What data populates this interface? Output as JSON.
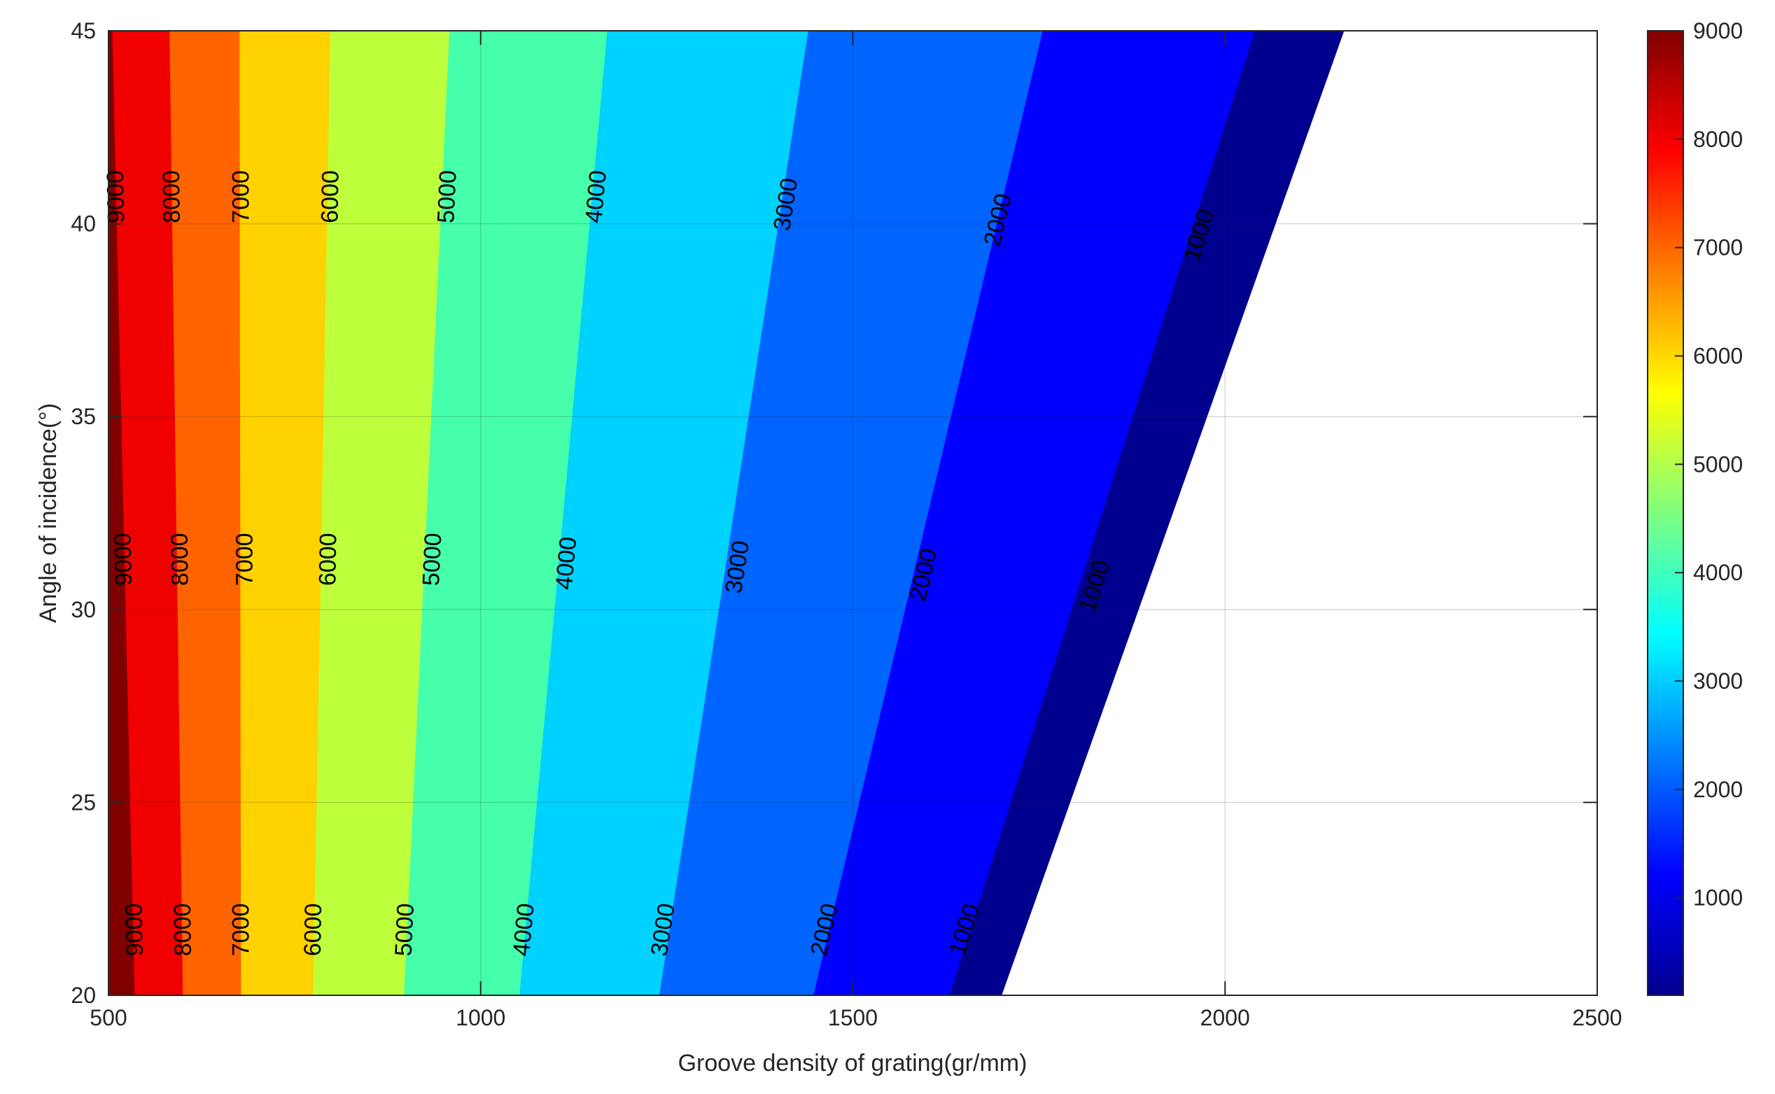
{
  "chart_data": {
    "type": "contour",
    "xlabel": "Groove density of grating(gr/mm)",
    "ylabel": "Angle of incidence(°)",
    "xlim": [
      500,
      2500
    ],
    "ylim": [
      20,
      45
    ],
    "x_ticks": [
      500,
      1000,
      1500,
      2000,
      2500
    ],
    "y_ticks": [
      20,
      25,
      30,
      35,
      40,
      45
    ],
    "grid": true,
    "colormap": "jet",
    "colorbar": {
      "range": [
        100,
        9000
      ],
      "ticks": [
        1000,
        2000,
        3000,
        4000,
        5000,
        6000,
        7000,
        8000,
        9000
      ],
      "placement": "right"
    },
    "contour_levels": [
      1000,
      2000,
      3000,
      4000,
      5000,
      6000,
      7000,
      8000,
      9000
    ],
    "contour_boundaries": [
      {
        "level": 9000,
        "x_at_y20": 535,
        "x_at_y45": 505
      },
      {
        "level": 8000,
        "x_at_y20": 600,
        "x_at_y45": 582
      },
      {
        "level": 7000,
        "x_at_y20": 678,
        "x_at_y45": 676
      },
      {
        "level": 6000,
        "x_at_y20": 775,
        "x_at_y45": 798
      },
      {
        "level": 5000,
        "x_at_y20": 897,
        "x_at_y45": 958
      },
      {
        "level": 4000,
        "x_at_y20": 1052,
        "x_at_y45": 1170
      },
      {
        "level": 3000,
        "x_at_y20": 1240,
        "x_at_y45": 1440
      },
      {
        "level": 2000,
        "x_at_y20": 1447,
        "x_at_y45": 1755
      },
      {
        "level": 1000,
        "x_at_y20": 1630,
        "x_at_y45": 2040
      },
      {
        "level": 100,
        "x_at_y20": 1700,
        "x_at_y45": 2160
      }
    ],
    "band_colors": [
      "#00008F",
      "#0000FF",
      "#0064FF",
      "#00D2FF",
      "#46FFAA",
      "#BEFF3C",
      "#FFD200",
      "#FF6400",
      "#F00000",
      "#800000"
    ],
    "contour_labels": [
      {
        "text": "9000",
        "x": 510,
        "y": 40.7
      },
      {
        "text": "8000",
        "x": 585,
        "y": 40.7
      },
      {
        "text": "7000",
        "x": 678,
        "y": 40.7
      },
      {
        "text": "6000",
        "x": 798,
        "y": 40.7
      },
      {
        "text": "5000",
        "x": 955,
        "y": 40.7
      },
      {
        "text": "4000",
        "x": 1155,
        "y": 40.7
      },
      {
        "text": "3000",
        "x": 1410,
        "y": 40.5
      },
      {
        "text": "2000",
        "x": 1695,
        "y": 40.1
      },
      {
        "text": "1000",
        "x": 1965,
        "y": 39.7
      },
      {
        "text": "9000",
        "x": 520,
        "y": 31.3
      },
      {
        "text": "8000",
        "x": 596,
        "y": 31.3
      },
      {
        "text": "7000",
        "x": 683,
        "y": 31.3
      },
      {
        "text": "6000",
        "x": 795,
        "y": 31.3
      },
      {
        "text": "5000",
        "x": 935,
        "y": 31.3
      },
      {
        "text": "4000",
        "x": 1115,
        "y": 31.2
      },
      {
        "text": "3000",
        "x": 1345,
        "y": 31.1
      },
      {
        "text": "2000",
        "x": 1595,
        "y": 30.9
      },
      {
        "text": "1000",
        "x": 1825,
        "y": 30.6
      },
      {
        "text": "9000",
        "x": 535,
        "y": 21.7
      },
      {
        "text": "8000",
        "x": 600,
        "y": 21.7
      },
      {
        "text": "7000",
        "x": 678,
        "y": 21.7
      },
      {
        "text": "6000",
        "x": 775,
        "y": 21.7
      },
      {
        "text": "5000",
        "x": 898,
        "y": 21.7
      },
      {
        "text": "4000",
        "x": 1058,
        "y": 21.7
      },
      {
        "text": "3000",
        "x": 1245,
        "y": 21.7
      },
      {
        "text": "2000",
        "x": 1462,
        "y": 21.7
      },
      {
        "text": "1000",
        "x": 1650,
        "y": 21.7
      }
    ]
  }
}
